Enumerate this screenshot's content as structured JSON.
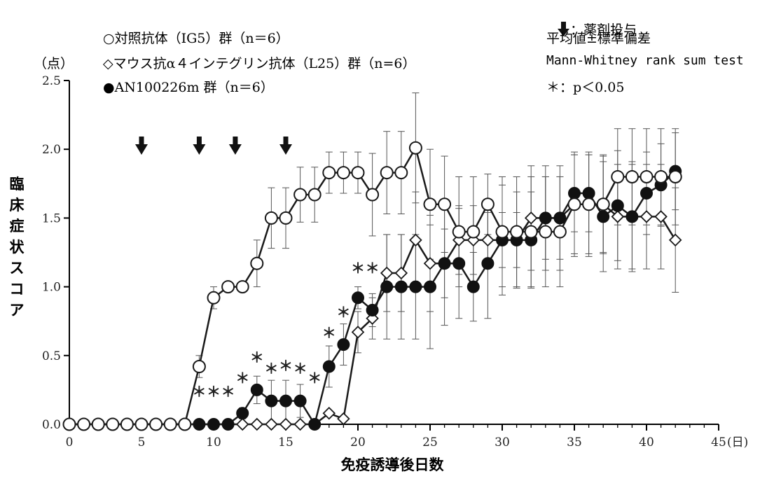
{
  "chart_data": {
    "type": "line",
    "title": "",
    "xlabel": "免疫誘導後日数",
    "ylabel": "臨床症状スコア",
    "y_unit": "（点）",
    "x_unit": "(日)",
    "xlim": [
      0,
      45
    ],
    "ylim": [
      0,
      2.5
    ],
    "x_ticks": [
      "0",
      "5",
      "10",
      "15",
      "20",
      "25",
      "30",
      "35",
      "40",
      "45"
    ],
    "y_ticks": [
      "0.0",
      "0.5",
      "1.0",
      "1.5",
      "2.0",
      "2.5"
    ],
    "grid": false,
    "legend": [
      "○対照抗体（IG5）群（n＝6）",
      "◇マウス抗α４インテグリン抗体（L25）群（n=6）",
      "●AN100226m 群（n＝6）"
    ],
    "notes": [
      "：薬剤投与",
      "平均値±標準偏差",
      "Mann-Whitney rank sum test",
      "＊：p＜0.05"
    ],
    "dosing_days": [
      5,
      9,
      11.5,
      15
    ],
    "significance": [
      {
        "x": 9,
        "y": 0.2,
        "text": "＊"
      },
      {
        "x": 10,
        "y": 0.2,
        "text": "＊"
      },
      {
        "x": 11,
        "y": 0.2,
        "text": "＊"
      },
      {
        "x": 12,
        "y": 0.3,
        "text": "＊"
      },
      {
        "x": 13,
        "y": 0.45,
        "text": "＊"
      },
      {
        "x": 14,
        "y": 0.37,
        "text": "＊"
      },
      {
        "x": 15,
        "y": 0.39,
        "text": "＊"
      },
      {
        "x": 16,
        "y": 0.37,
        "text": "＊"
      },
      {
        "x": 17,
        "y": 0.3,
        "text": "＊"
      },
      {
        "x": 18,
        "y": 0.63,
        "text": "＊"
      },
      {
        "x": 19,
        "y": 0.78,
        "text": "＊"
      },
      {
        "x": 20,
        "y": 1.1,
        "text": "＊"
      },
      {
        "x": 21,
        "y": 1.1,
        "text": "＊"
      }
    ],
    "series": [
      {
        "marker": "open-circle",
        "x": [
          0,
          1,
          2,
          3,
          4,
          5,
          6,
          7,
          8,
          9,
          10,
          11,
          12,
          13,
          14,
          15,
          16,
          17,
          18,
          19,
          20,
          21,
          22,
          23,
          24,
          25,
          26,
          27,
          28,
          29,
          30,
          31,
          32,
          33,
          34,
          35,
          36,
          37,
          38,
          39,
          40,
          41,
          42
        ],
        "values": [
          0,
          0,
          0,
          0,
          0,
          0,
          0,
          0,
          0,
          0.42,
          0.92,
          1.0,
          1.0,
          1.17,
          1.5,
          1.5,
          1.67,
          1.67,
          1.83,
          1.83,
          1.83,
          1.67,
          1.83,
          1.83,
          2.01,
          1.6,
          1.6,
          1.4,
          1.4,
          1.6,
          1.4,
          1.4,
          1.4,
          1.4,
          1.4,
          1.6,
          1.6,
          1.6,
          1.8,
          1.8,
          1.8,
          1.8,
          1.8
        ],
        "errors": [
          0,
          0,
          0,
          0,
          0,
          0,
          0,
          0,
          0,
          0.08,
          0.08,
          0,
          0,
          0.17,
          0.22,
          0.22,
          0.2,
          0.2,
          0.15,
          0.15,
          0.15,
          0.3,
          0.3,
          0.3,
          0.4,
          0.4,
          0.35,
          0.4,
          0.4,
          0.22,
          0.4,
          0.4,
          0.4,
          0.4,
          0.4,
          0.38,
          0.38,
          0.35,
          0.35,
          0.35,
          0.35,
          0.35,
          0.35
        ]
      },
      {
        "marker": "open-diamond",
        "x": [
          0,
          1,
          2,
          3,
          4,
          5,
          6,
          7,
          8,
          9,
          10,
          11,
          12,
          13,
          14,
          15,
          16,
          17,
          18,
          19,
          20,
          21,
          22,
          23,
          24,
          25,
          26,
          27,
          28,
          29,
          30,
          31,
          32,
          33,
          34,
          35,
          36,
          37,
          38,
          39,
          40,
          41,
          42
        ],
        "values": [
          0,
          0,
          0,
          0,
          0,
          0,
          0,
          0,
          0,
          0,
          0,
          0,
          0,
          0,
          0,
          0,
          0,
          0,
          0.08,
          0.04,
          0.67,
          0.77,
          1.1,
          1.1,
          1.34,
          1.17,
          1.17,
          1.34,
          1.34,
          1.34,
          1.34,
          1.34,
          1.5,
          1.5,
          1.5,
          1.6,
          1.6,
          1.6,
          1.51,
          1.51,
          1.51,
          1.51,
          1.34
        ],
        "errors": [
          0,
          0,
          0,
          0,
          0,
          0,
          0,
          0,
          0,
          0,
          0,
          0,
          0,
          0,
          0,
          0,
          0,
          0,
          0,
          0,
          0.15,
          0.15,
          0.28,
          0.28,
          0.35,
          0.35,
          0.25,
          0.25,
          0.25,
          0.2,
          0.2,
          0.2,
          0.38,
          0.38,
          0.38,
          0.36,
          0.36,
          0.36,
          0.38,
          0.38,
          0.38,
          0.38,
          0.38
        ]
      },
      {
        "marker": "filled-circle",
        "x": [
          0,
          1,
          2,
          3,
          4,
          5,
          6,
          7,
          8,
          9,
          10,
          11,
          12,
          13,
          14,
          15,
          16,
          17,
          18,
          19,
          20,
          21,
          22,
          23,
          24,
          25,
          26,
          27,
          28,
          29,
          30,
          31,
          32,
          33,
          34,
          35,
          36,
          37,
          38,
          39,
          40,
          41,
          42
        ],
        "values": [
          0,
          0,
          0,
          0,
          0,
          0,
          0,
          0,
          0,
          0,
          0,
          0,
          0.08,
          0.25,
          0.17,
          0.17,
          0.17,
          0,
          0.42,
          0.58,
          0.92,
          0.83,
          1.0,
          1.0,
          1.0,
          1.0,
          1.17,
          1.17,
          1.0,
          1.17,
          1.34,
          1.34,
          1.34,
          1.5,
          1.5,
          1.68,
          1.68,
          1.51,
          1.59,
          1.51,
          1.68,
          1.74,
          1.84
        ],
        "errors": [
          0,
          0,
          0,
          0,
          0,
          0,
          0,
          0,
          0,
          0,
          0,
          0,
          0.04,
          0.1,
          0.15,
          0.15,
          0.12,
          0,
          0.15,
          0.15,
          0.08,
          0.12,
          0.38,
          0.38,
          0.38,
          0.45,
          0.45,
          0.4,
          0.25,
          0.4,
          0.4,
          0.35,
          0.35,
          0.3,
          0.3,
          0.28,
          0.28,
          0.4,
          0.4,
          0.4,
          0.3,
          0.3,
          0.28
        ]
      }
    ]
  }
}
